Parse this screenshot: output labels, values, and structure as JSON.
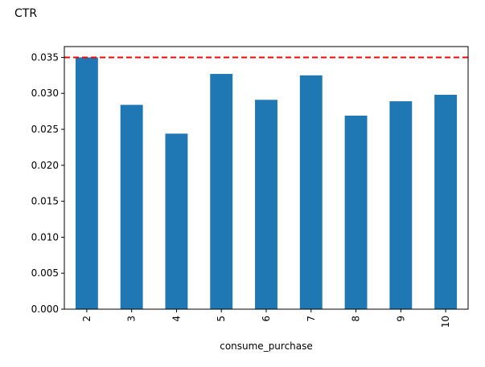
{
  "page": {
    "heading": "CTR"
  },
  "chart_data": {
    "type": "bar",
    "categories": [
      "2",
      "3",
      "4",
      "5",
      "6",
      "7",
      "8",
      "9",
      "10"
    ],
    "values": [
      0.035,
      0.0284,
      0.0244,
      0.0327,
      0.0291,
      0.0325,
      0.0269,
      0.0289,
      0.0298
    ],
    "title": "",
    "xlabel": "consume_purchase",
    "ylabel": "",
    "ylim": [
      0.0,
      0.0365
    ],
    "yticks": [
      "0.000",
      "0.005",
      "0.010",
      "0.015",
      "0.020",
      "0.025",
      "0.030",
      "0.035"
    ],
    "reference_line": {
      "value": 0.035,
      "style": "dashed",
      "color": "#ff0000"
    },
    "bar_color": "#1f77b4",
    "grid": false,
    "legend": "none"
  }
}
